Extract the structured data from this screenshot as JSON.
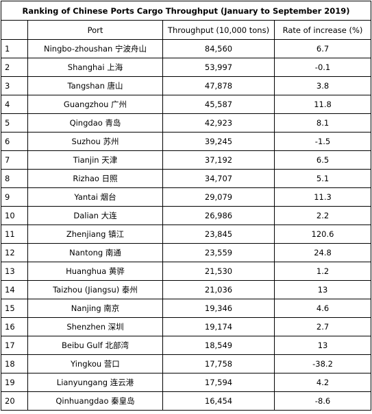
{
  "title": "Ranking of Chinese Ports Cargo Throughput (January to September 2019)",
  "headers": {
    "rank": "",
    "port": "Port",
    "throughput": "Throughput (10,000 tons)",
    "rate": "Rate of increase (%)"
  },
  "rows": [
    {
      "rank": "1",
      "port": "Ningbo-zhoushan  宁波舟山",
      "throughput": "84,560",
      "rate": "6.7"
    },
    {
      "rank": "2",
      "port": "Shanghai  上海",
      "throughput": "53,997",
      "rate": "-0.1"
    },
    {
      "rank": "3",
      "port": "Tangshan  唐山",
      "throughput": "47,878",
      "rate": "3.8"
    },
    {
      "rank": "4",
      "port": "Guangzhou  广州",
      "throughput": "45,587",
      "rate": "11.8"
    },
    {
      "rank": "5",
      "port": "Qingdao  青岛",
      "throughput": "42,923",
      "rate": "8.1"
    },
    {
      "rank": "6",
      "port": "Suzhou  苏州",
      "throughput": "39,245",
      "rate": "-1.5"
    },
    {
      "rank": "7",
      "port": "Tianjin  天津",
      "throughput": "37,192",
      "rate": "6.5"
    },
    {
      "rank": "8",
      "port": "Rizhao  日照",
      "throughput": "34,707",
      "rate": "5.1"
    },
    {
      "rank": "9",
      "port": "Yantai  烟台",
      "throughput": "29,079",
      "rate": "11.3"
    },
    {
      "rank": "10",
      "port": "Dalian  大连",
      "throughput": "26,986",
      "rate": "2.2"
    },
    {
      "rank": "11",
      "port": "Zhenjiang  镇江",
      "throughput": "23,845",
      "rate": "120.6"
    },
    {
      "rank": "12",
      "port": "Nantong  南通",
      "throughput": "23,559",
      "rate": "24.8"
    },
    {
      "rank": "13",
      "port": "Huanghua  黄骅",
      "throughput": "21,530",
      "rate": "1.2"
    },
    {
      "rank": "14",
      "port": "Taizhou (Jiangsu)  泰州",
      "throughput": "21,036",
      "rate": "13"
    },
    {
      "rank": "15",
      "port": "Nanjing  南京",
      "throughput": "19,346",
      "rate": "4.6"
    },
    {
      "rank": "16",
      "port": "Shenzhen  深圳",
      "throughput": "19,174",
      "rate": "2.7"
    },
    {
      "rank": "17",
      "port": "Beibu Gulf  北部湾",
      "throughput": "18,549",
      "rate": "13"
    },
    {
      "rank": "18",
      "port": "Yingkou  营口",
      "throughput": "17,758",
      "rate": "-38.2"
    },
    {
      "rank": "19",
      "port": "Lianyungang  连云港",
      "throughput": "17,594",
      "rate": "4.2"
    },
    {
      "rank": "20",
      "port": "Qinhuangdao  秦皇岛",
      "throughput": "16,454",
      "rate": "-8.6"
    }
  ]
}
